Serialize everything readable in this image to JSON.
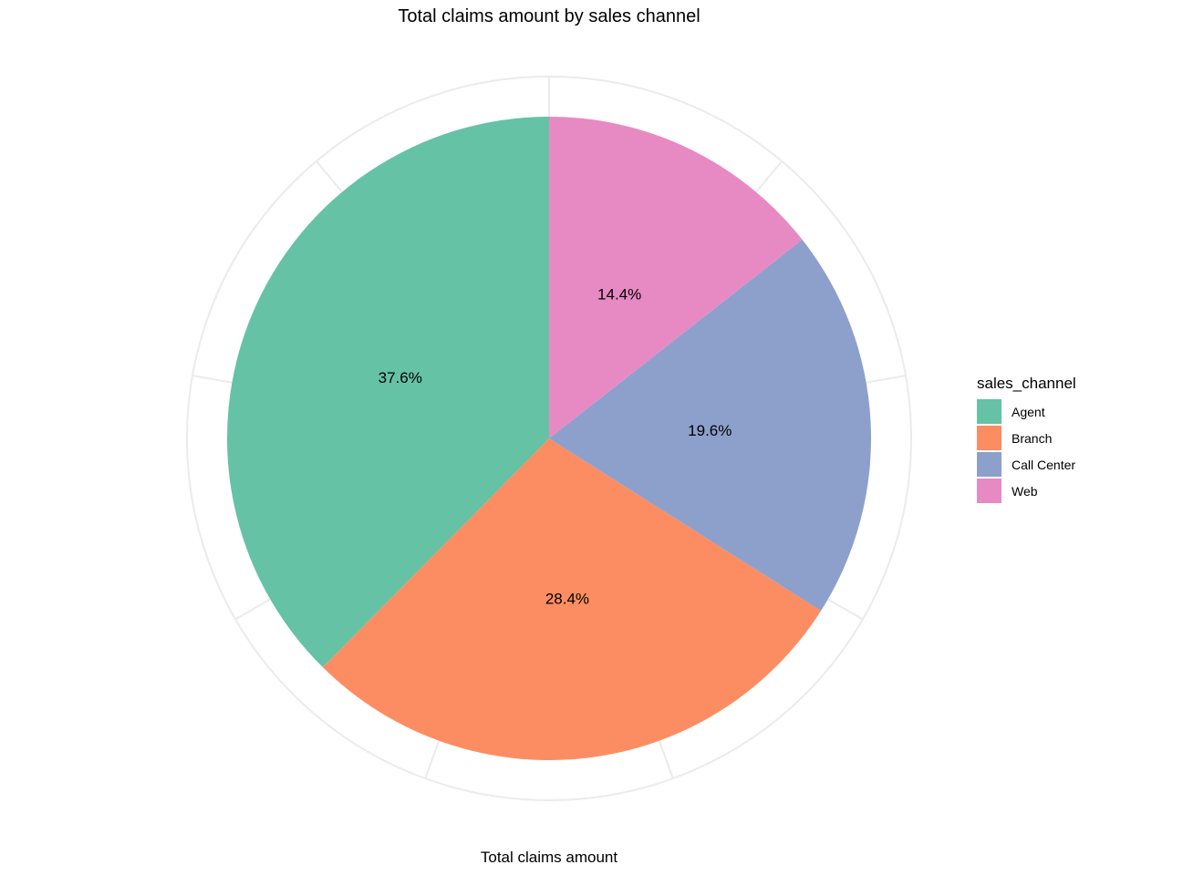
{
  "chart_data": {
    "type": "pie",
    "title": "Total claims amount by sales channel",
    "xlabel": "Total claims amount",
    "legend": {
      "title": "sales_channel",
      "placement": "right"
    },
    "slices": [
      {
        "category": "Agent",
        "value": 37.6,
        "label": "37.6%",
        "color": "#66c2a5"
      },
      {
        "category": "Branch",
        "value": 28.4,
        "label": "28.4%",
        "color": "#fc8d62"
      },
      {
        "category": "Call Center",
        "value": 19.6,
        "label": "19.6%",
        "color": "#8da0cb"
      },
      {
        "category": "Web",
        "value": 14.4,
        "label": "14.4%",
        "color": "#e78ac3"
      }
    ],
    "grid": true
  }
}
